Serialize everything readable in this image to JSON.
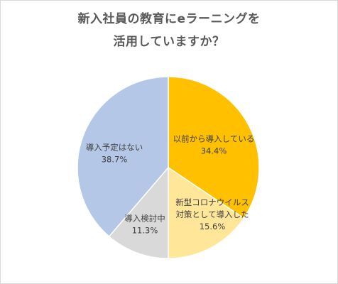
{
  "chart_data": {
    "type": "pie",
    "title_lines": [
      "新入社員の教育にeラーニングを",
      "活用していますか？"
    ],
    "slices": [
      {
        "label_lines": [
          "以前から導入している"
        ],
        "percent_label": "34.4%",
        "value": 34.4,
        "color": "#FFC000"
      },
      {
        "label_lines": [
          "新型コロナウイルス",
          "対策として導入した"
        ],
        "percent_label": "15.6%",
        "value": 15.6,
        "color": "#FFE699"
      },
      {
        "label_lines": [
          "導入検討中"
        ],
        "percent_label": "11.3%",
        "value": 11.3,
        "color": "#D9D9D9"
      },
      {
        "label_lines": [
          "導入予定はない"
        ],
        "percent_label": "38.7%",
        "value": 38.7,
        "color": "#B4C7E7"
      }
    ],
    "start_angle": "12 o'clock",
    "direction": "clockwise",
    "legend": "none"
  }
}
